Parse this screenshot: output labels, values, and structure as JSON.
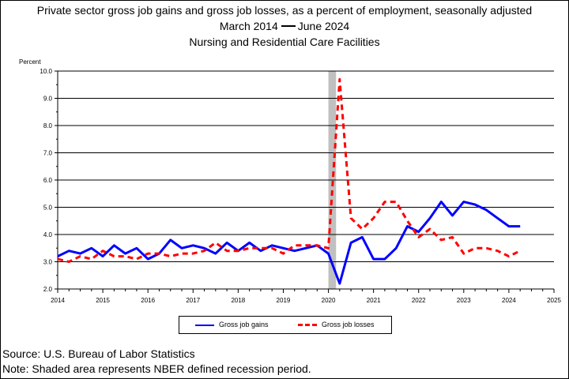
{
  "title": {
    "line1": "Private sector gross job gains and gross job losses, as a percent of employment, seasonally adjusted",
    "line2_start": "March 2014",
    "line2_end": "June 2024",
    "line3": "Nursing and Residential Care Facilities"
  },
  "footer": {
    "source": "Source: U.S. Bureau of Labor Statistics",
    "note": "Note: Shaded area represents NBER defined recession period."
  },
  "chart_data": {
    "type": "line",
    "ylabel": "Percent",
    "ylim": [
      2.0,
      10.0
    ],
    "yticks": [
      "2.0",
      "3.0",
      "4.0",
      "5.0",
      "6.0",
      "7.0",
      "8.0",
      "9.0",
      "10.0"
    ],
    "xlim": [
      2014,
      2025
    ],
    "xticks": [
      "2014",
      "2015",
      "2016",
      "2017",
      "2018",
      "2019",
      "2020",
      "2021",
      "2022",
      "2023",
      "2024",
      "2025"
    ],
    "grid": true,
    "legend_position": "bottom",
    "recession_shading": {
      "start": 2020.0,
      "end": 2020.17
    },
    "x": [
      2014.0,
      2014.25,
      2014.5,
      2014.75,
      2015.0,
      2015.25,
      2015.5,
      2015.75,
      2016.0,
      2016.25,
      2016.5,
      2016.75,
      2017.0,
      2017.25,
      2017.5,
      2017.75,
      2018.0,
      2018.25,
      2018.5,
      2018.75,
      2019.0,
      2019.25,
      2019.5,
      2019.75,
      2020.0,
      2020.25,
      2020.5,
      2020.75,
      2021.0,
      2021.25,
      2021.5,
      2021.75,
      2022.0,
      2022.25,
      2022.5,
      2022.75,
      2023.0,
      2023.25,
      2023.5,
      2023.75,
      2024.0,
      2024.25
    ],
    "series": [
      {
        "name": "Gross job gains",
        "color": "#0000ff",
        "style": "solid",
        "values": [
          3.2,
          3.4,
          3.3,
          3.5,
          3.2,
          3.6,
          3.3,
          3.5,
          3.1,
          3.3,
          3.8,
          3.5,
          3.6,
          3.5,
          3.3,
          3.7,
          3.4,
          3.7,
          3.4,
          3.6,
          3.5,
          3.4,
          3.5,
          3.6,
          3.3,
          2.2,
          3.7,
          3.9,
          3.1,
          3.1,
          3.5,
          4.3,
          4.1,
          4.6,
          5.2,
          4.7,
          5.2,
          5.1,
          4.9,
          4.6,
          4.3,
          4.3
        ]
      },
      {
        "name": "Gross job losses",
        "color": "#ff0000",
        "style": "dashed",
        "values": [
          3.1,
          3.0,
          3.2,
          3.1,
          3.4,
          3.2,
          3.2,
          3.1,
          3.3,
          3.3,
          3.2,
          3.3,
          3.3,
          3.4,
          3.7,
          3.4,
          3.4,
          3.5,
          3.5,
          3.5,
          3.3,
          3.6,
          3.6,
          3.6,
          3.5,
          9.7,
          4.6,
          4.2,
          4.6,
          5.2,
          5.2,
          4.5,
          3.9,
          4.2,
          3.8,
          3.9,
          3.3,
          3.5,
          3.5,
          3.4,
          3.2,
          3.4
        ]
      }
    ]
  }
}
